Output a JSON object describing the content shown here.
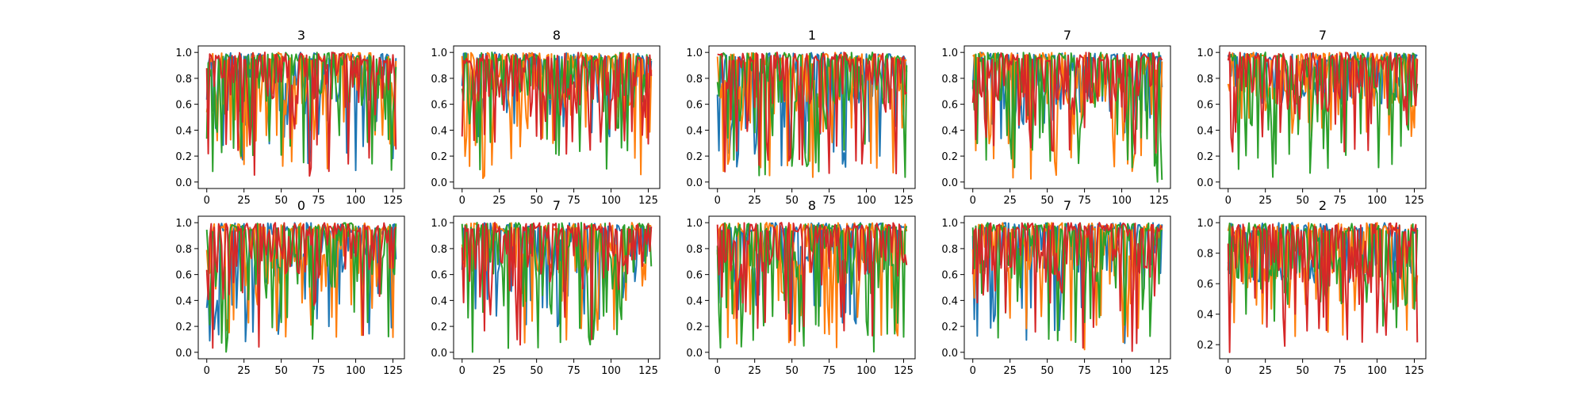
{
  "figure": {
    "colors": [
      "#1f77b4",
      "#ff7f0e",
      "#2ca02c",
      "#d62728"
    ],
    "series_count": 4,
    "series_points": 128
  },
  "chart_data": [
    {
      "type": "line",
      "title": "3",
      "xlim": [
        0,
        127
      ],
      "ylim": [
        0.0,
        1.0
      ],
      "xticks": [
        "0",
        "25",
        "50",
        "75",
        "100",
        "125"
      ],
      "yticks": [
        "0.0",
        "0.2",
        "0.4",
        "0.6",
        "0.8",
        "1.0"
      ],
      "ytick_values": [
        0.0,
        0.2,
        0.4,
        0.6,
        0.8,
        1.0
      ],
      "grid": false,
      "min_by_series": [
        0.08,
        0.1,
        0.08,
        0.02
      ],
      "series": [
        {
          "color": "#1f77b4",
          "values": []
        },
        {
          "color": "#ff7f0e",
          "values": []
        },
        {
          "color": "#2ca02c",
          "values": []
        },
        {
          "color": "#d62728",
          "values": []
        }
      ]
    },
    {
      "type": "line",
      "title": "8",
      "xlim": [
        0,
        127
      ],
      "ylim": [
        0.0,
        1.0
      ],
      "xticks": [
        "0",
        "25",
        "50",
        "75",
        "100",
        "125"
      ],
      "yticks": [
        "0.0",
        "0.2",
        "0.4",
        "0.6",
        "0.8",
        "1.0"
      ],
      "ytick_values": [
        0.0,
        0.2,
        0.4,
        0.6,
        0.8,
        1.0
      ],
      "grid": false,
      "min_by_series": [
        0.35,
        0.02,
        0.0,
        0.2
      ],
      "series": [
        {
          "color": "#1f77b4",
          "values": []
        },
        {
          "color": "#ff7f0e",
          "values": []
        },
        {
          "color": "#2ca02c",
          "values": []
        },
        {
          "color": "#d62728",
          "values": []
        }
      ]
    },
    {
      "type": "line",
      "title": "1",
      "xlim": [
        0,
        127
      ],
      "ylim": [
        0.0,
        1.0
      ],
      "xticks": [
        "0",
        "25",
        "50",
        "75",
        "100",
        "125"
      ],
      "yticks": [
        "0.0",
        "0.2",
        "0.4",
        "0.6",
        "0.8",
        "1.0"
      ],
      "ytick_values": [
        0.0,
        0.2,
        0.4,
        0.6,
        0.8,
        1.0
      ],
      "grid": false,
      "min_by_series": [
        0.1,
        0.02,
        0.0,
        0.05
      ],
      "series": [
        {
          "color": "#1f77b4",
          "values": []
        },
        {
          "color": "#ff7f0e",
          "values": []
        },
        {
          "color": "#2ca02c",
          "values": []
        },
        {
          "color": "#d62728",
          "values": []
        }
      ]
    },
    {
      "type": "line",
      "title": "7",
      "xlim": [
        0,
        127
      ],
      "ylim": [
        0.0,
        1.0
      ],
      "xticks": [
        "0",
        "25",
        "50",
        "75",
        "100",
        "125"
      ],
      "yticks": [
        "0.0",
        "0.2",
        "0.4",
        "0.6",
        "0.8",
        "1.0"
      ],
      "ytick_values": [
        0.0,
        0.2,
        0.4,
        0.6,
        0.8,
        1.0
      ],
      "grid": false,
      "min_by_series": [
        0.3,
        0.0,
        0.0,
        0.2
      ],
      "series": [
        {
          "color": "#1f77b4",
          "values": []
        },
        {
          "color": "#ff7f0e",
          "values": []
        },
        {
          "color": "#2ca02c",
          "values": []
        },
        {
          "color": "#d62728",
          "values": []
        }
      ]
    },
    {
      "type": "line",
      "title": "7",
      "xlim": [
        0,
        127
      ],
      "ylim": [
        0.0,
        1.0
      ],
      "xticks": [
        "0",
        "25",
        "50",
        "75",
        "100",
        "125"
      ],
      "yticks": [
        "0.0",
        "0.2",
        "0.4",
        "0.6",
        "0.8",
        "1.0"
      ],
      "ytick_values": [
        0.0,
        0.2,
        0.4,
        0.6,
        0.8,
        1.0
      ],
      "grid": false,
      "min_by_series": [
        0.6,
        0.35,
        0.02,
        0.2
      ],
      "series": [
        {
          "color": "#1f77b4",
          "values": []
        },
        {
          "color": "#ff7f0e",
          "values": []
        },
        {
          "color": "#2ca02c",
          "values": []
        },
        {
          "color": "#d62728",
          "values": []
        }
      ]
    },
    {
      "type": "line",
      "title": "0",
      "xlim": [
        0,
        127
      ],
      "ylim": [
        0.0,
        1.0
      ],
      "xticks": [
        "0",
        "25",
        "50",
        "75",
        "100",
        "125"
      ],
      "yticks": [
        "0.0",
        "0.2",
        "0.4",
        "0.6",
        "0.8",
        "1.0"
      ],
      "ytick_values": [
        0.0,
        0.2,
        0.4,
        0.6,
        0.8,
        1.0
      ],
      "grid": false,
      "min_by_series": [
        0.05,
        0.1,
        0.0,
        0.02
      ],
      "series": [
        {
          "color": "#1f77b4",
          "values": []
        },
        {
          "color": "#ff7f0e",
          "values": []
        },
        {
          "color": "#2ca02c",
          "values": []
        },
        {
          "color": "#d62728",
          "values": []
        }
      ]
    },
    {
      "type": "line",
      "title": "7",
      "xlim": [
        0,
        127
      ],
      "ylim": [
        0.0,
        1.0
      ],
      "xticks": [
        "0",
        "25",
        "50",
        "75",
        "100",
        "125"
      ],
      "yticks": [
        "0.0",
        "0.2",
        "0.4",
        "0.6",
        "0.8",
        "1.0"
      ],
      "ytick_values": [
        0.0,
        0.2,
        0.4,
        0.6,
        0.8,
        1.0
      ],
      "grid": false,
      "min_by_series": [
        0.2,
        0.05,
        0.0,
        0.05
      ],
      "series": [
        {
          "color": "#1f77b4",
          "values": []
        },
        {
          "color": "#ff7f0e",
          "values": []
        },
        {
          "color": "#2ca02c",
          "values": []
        },
        {
          "color": "#d62728",
          "values": []
        }
      ]
    },
    {
      "type": "line",
      "title": "8",
      "xlim": [
        0,
        127
      ],
      "ylim": [
        0.0,
        1.0
      ],
      "xticks": [
        "0",
        "25",
        "50",
        "75",
        "100",
        "125"
      ],
      "yticks": [
        "0.0",
        "0.2",
        "0.4",
        "0.6",
        "0.8",
        "1.0"
      ],
      "ytick_values": [
        0.0,
        0.2,
        0.4,
        0.6,
        0.8,
        1.0
      ],
      "grid": false,
      "min_by_series": [
        0.2,
        0.02,
        0.0,
        0.05
      ],
      "series": [
        {
          "color": "#1f77b4",
          "values": []
        },
        {
          "color": "#ff7f0e",
          "values": []
        },
        {
          "color": "#2ca02c",
          "values": []
        },
        {
          "color": "#d62728",
          "values": []
        }
      ]
    },
    {
      "type": "line",
      "title": "7",
      "xlim": [
        0,
        127
      ],
      "ylim": [
        0.0,
        1.0
      ],
      "xticks": [
        "0",
        "25",
        "50",
        "75",
        "100",
        "125"
      ],
      "yticks": [
        "0.0",
        "0.2",
        "0.4",
        "0.6",
        "0.8",
        "1.0"
      ],
      "ytick_values": [
        0.0,
        0.2,
        0.4,
        0.6,
        0.8,
        1.0
      ],
      "grid": false,
      "min_by_series": [
        0.05,
        0.0,
        0.05,
        0.0
      ],
      "series": [
        {
          "color": "#1f77b4",
          "values": []
        },
        {
          "color": "#ff7f0e",
          "values": []
        },
        {
          "color": "#2ca02c",
          "values": []
        },
        {
          "color": "#d62728",
          "values": []
        }
      ]
    },
    {
      "type": "line",
      "title": "2",
      "xlim": [
        0,
        127
      ],
      "ylim": [
        0.15,
        1.0
      ],
      "xticks": [
        "0",
        "25",
        "50",
        "75",
        "100",
        "125"
      ],
      "yticks": [
        "0.2",
        "0.4",
        "0.6",
        "0.8",
        "1.0"
      ],
      "ytick_values": [
        0.2,
        0.4,
        0.6,
        0.8,
        1.0
      ],
      "grid": false,
      "min_by_series": [
        0.6,
        0.25,
        0.3,
        0.15
      ],
      "series": [
        {
          "color": "#1f77b4",
          "values": []
        },
        {
          "color": "#ff7f0e",
          "values": []
        },
        {
          "color": "#2ca02c",
          "values": []
        },
        {
          "color": "#d62728",
          "values": []
        }
      ]
    }
  ]
}
